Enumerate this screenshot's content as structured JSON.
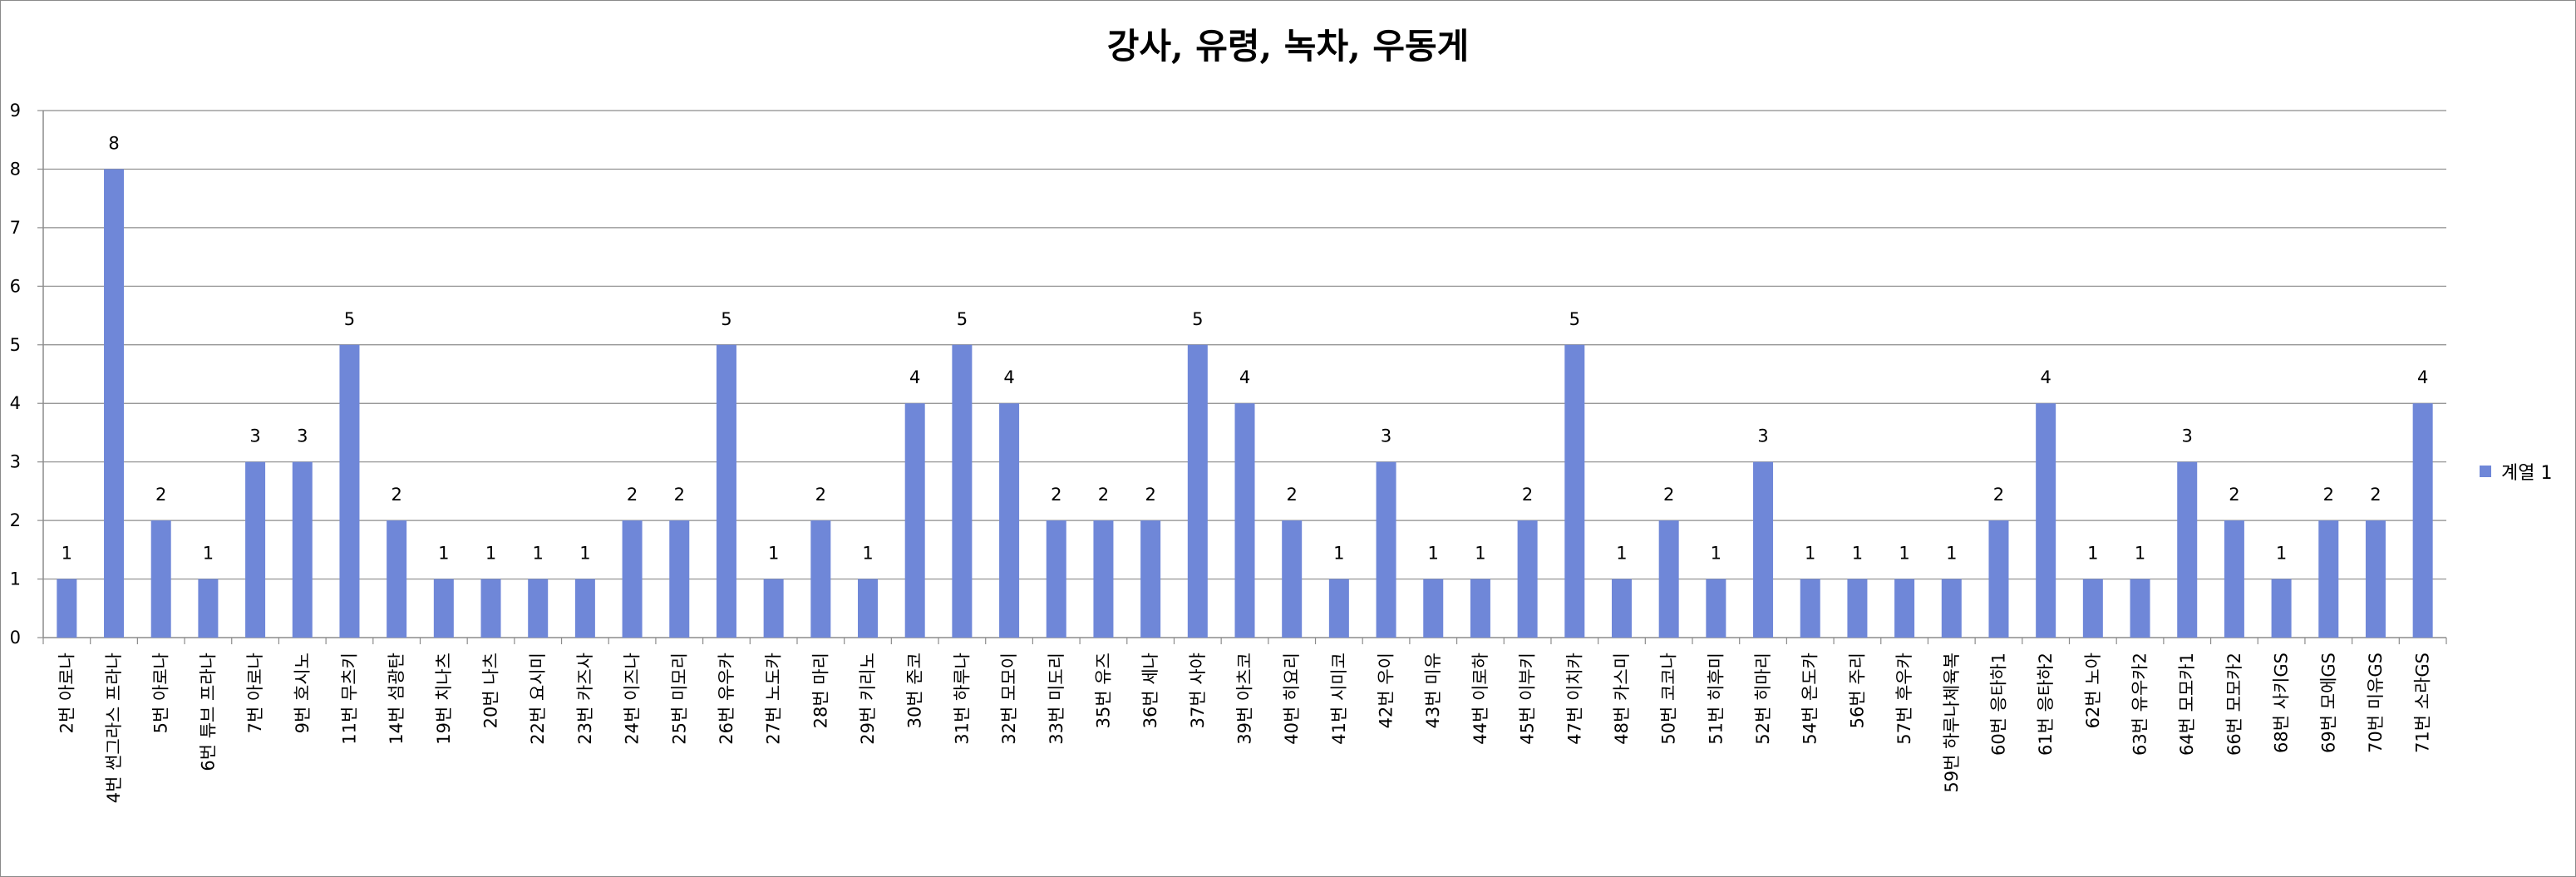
{
  "chart_data": {
    "type": "bar",
    "title": "강사, 유령, 녹차, 우동게",
    "xlabel": "",
    "ylabel": "",
    "ylim": [
      0,
      9
    ],
    "y_ticks": [
      "0",
      "1",
      "2",
      "3",
      "4",
      "5",
      "6",
      "7",
      "8",
      "9"
    ],
    "grid": true,
    "legend_position": "right",
    "bar_color": "#6f87d8",
    "categories": [
      "2번 아로나",
      "4번 썬그라스 프라나",
      "5번 아로나",
      "6번 튜브 프라나",
      "7번 아로나",
      "9번 호시노",
      "11번 무츠키",
      "14번 섬광탄",
      "19번 치나츠",
      "20번 나츠",
      "22번 요시미",
      "23번 카즈사",
      "24번 이즈나",
      "25번 미모리",
      "26번 유우카",
      "27번 노도카",
      "28번 마리",
      "29번 키리노",
      "30번 준코",
      "31번 하루나",
      "32번 모모이",
      "33번 미도리",
      "35번 유즈",
      "36번 세나",
      "37번 사야",
      "39번 아츠코",
      "40번 히요리",
      "41번 시미코",
      "42번 우이",
      "43번 미유",
      "44번 이로하",
      "45번 이부키",
      "47번 이치카",
      "48번 카스미",
      "50번 코코나",
      "51번 히후미",
      "52번 히마리",
      "54번 온도카",
      "56번 주리",
      "57번 후우카",
      "59번 하루나체육복",
      "60번 응타하1",
      "61번 응타하2",
      "62번 노아",
      "63번 유우카2",
      "64번 모모카1",
      "66번 모모카2",
      "68번 사키GS",
      "69번 모에GS",
      "70번 미유GS",
      "71번 소라GS"
    ],
    "series": [
      {
        "name": "계열 1",
        "values": [
          1,
          8,
          2,
          1,
          3,
          3,
          5,
          2,
          1,
          1,
          1,
          1,
          2,
          2,
          5,
          1,
          2,
          1,
          4,
          5,
          4,
          2,
          2,
          2,
          5,
          4,
          2,
          1,
          3,
          1,
          1,
          2,
          5,
          1,
          2,
          1,
          3,
          1,
          1,
          1,
          1,
          2,
          4,
          1,
          1,
          3,
          2,
          1,
          2,
          2,
          4
        ]
      }
    ]
  }
}
